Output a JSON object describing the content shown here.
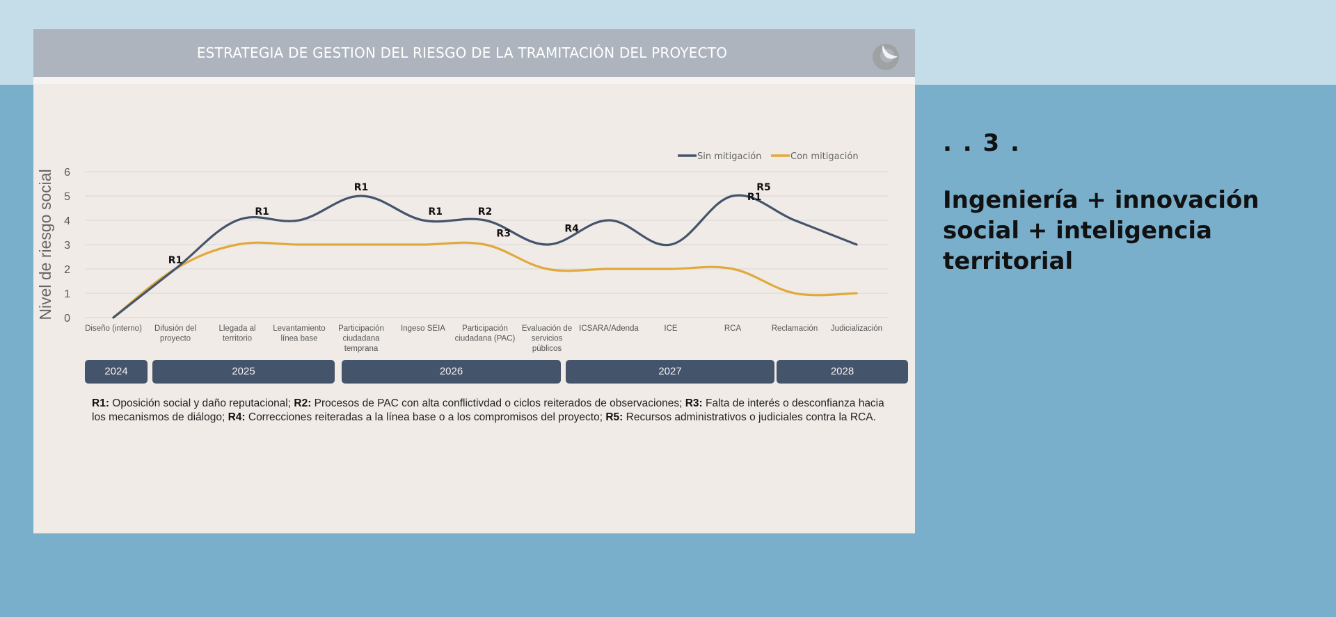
{
  "slide": {
    "title": "ESTRATEGIA DE GESTION DEL RIESGO DE LA TRAMITACIÓN DEL PROYECTO",
    "logo_icon": "crescent-moon-logo",
    "section_number": ". . 3 .",
    "section_title": "Ingeniería + innovación social + inteligencia territorial"
  },
  "colors": {
    "sin_mitigacion": "#44546b",
    "con_mitigacion": "#e0a93a",
    "year_pill": "#44546b",
    "header": "#adb4be",
    "panel": "#f0ebe7"
  },
  "chart_data": {
    "type": "line",
    "ylabel": "Nivel de riesgo social",
    "xlabel": "",
    "ylim": [
      0,
      6
    ],
    "yticks": [
      "0",
      "1",
      "2",
      "3",
      "4",
      "5",
      "6"
    ],
    "grid": true,
    "legend_position": "top-right",
    "categories": [
      "Diseño (interno)",
      "Difusión del proyecto",
      "Llegada al territorio",
      "Levantamiento línea base",
      "Participación ciudadana temprana",
      "Ingeso SEIA",
      "Participación ciudadana (PAC)",
      "Evaluación de servicios públicos",
      "ICSARA/Adenda",
      "ICE",
      "RCA",
      "Reclamación",
      "Judicialización"
    ],
    "category_lines": [
      [
        "Diseño (interno)"
      ],
      [
        "Difusión del",
        "proyecto"
      ],
      [
        "Llegada al",
        "territorio"
      ],
      [
        "Levantamiento",
        "línea base"
      ],
      [
        "Participación",
        "ciudadana",
        "temprana"
      ],
      [
        "Ingeso SEIA"
      ],
      [
        "Participación",
        "ciudadana (PAC)"
      ],
      [
        "Evaluación de",
        "servicios",
        "públicos"
      ],
      [
        "ICSARA/Adenda"
      ],
      [
        "ICE"
      ],
      [
        "RCA"
      ],
      [
        "Reclamación"
      ],
      [
        "Judicialización"
      ]
    ],
    "series": [
      {
        "name": "Sin mitigación",
        "values": [
          0,
          2,
          4,
          4,
          5,
          4,
          4,
          3,
          4,
          3,
          5,
          4,
          3
        ]
      },
      {
        "name": "Con mitigación",
        "values": [
          0,
          2,
          3,
          3,
          3,
          3,
          3,
          2,
          2,
          2,
          2,
          1,
          1
        ]
      }
    ],
    "annotations": [
      {
        "text": "R1",
        "category_index": 1,
        "y": 2
      },
      {
        "text": "R1",
        "category_index": 2.4,
        "y": 4
      },
      {
        "text": "R1",
        "category_index": 4,
        "y": 5
      },
      {
        "text": "R1",
        "category_index": 5.2,
        "y": 4
      },
      {
        "text": "R2",
        "category_index": 6,
        "y": 4
      },
      {
        "text": "R3",
        "category_index": 6.3,
        "y": 3.1
      },
      {
        "text": "R4",
        "category_index": 7.4,
        "y": 3.3
      },
      {
        "text": "R5",
        "category_index": 10.5,
        "y": 5
      },
      {
        "text": "R1",
        "category_index": 10.35,
        "y": 4.6
      }
    ],
    "years": [
      {
        "label": "2024",
        "from": 0,
        "to": 0
      },
      {
        "label": "2025",
        "from": 1,
        "to": 3
      },
      {
        "label": "2026",
        "from": 4,
        "to": 6
      },
      {
        "label": "2027",
        "from": 7,
        "to": 10
      },
      {
        "label": "2028",
        "from": 11,
        "to": 12
      }
    ]
  },
  "footnote": [
    {
      "key": "R1:",
      "text": " Oposición social y daño reputacional; "
    },
    {
      "key": "R2:",
      "text": " Procesos de PAC con alta conflictivdad o ciclos reiterados de observaciones; "
    },
    {
      "key": "R3:",
      "text": " Falta de interés o desconfianza hacia los mecanismos de diálogo; "
    },
    {
      "key": "R4:",
      "text": " Correcciones reiteradas a la línea base o a los compromisos del proyecto; "
    },
    {
      "key": "R5:",
      "text": " Recursos administrativos o judiciales contra la RCA."
    }
  ]
}
